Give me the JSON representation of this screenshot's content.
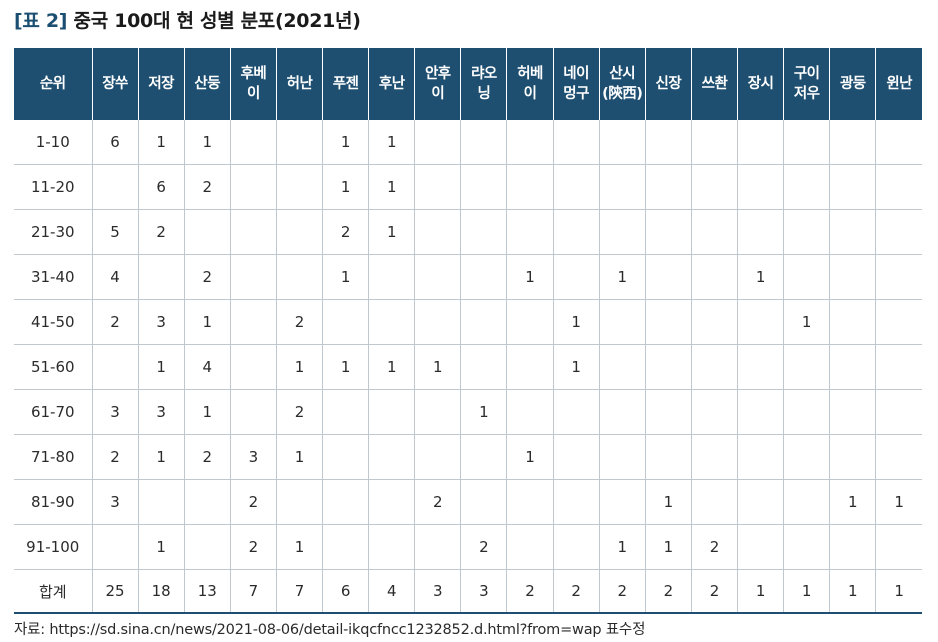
{
  "title": {
    "label": "[표 2]",
    "text": "중국 100대 현 성별 분포(2021년)"
  },
  "table": {
    "headers": [
      "순위",
      "장쑤",
      "저장",
      "산둥",
      "후베\n이",
      "허난",
      "푸젠",
      "후난",
      "안후\n이",
      "랴오\n닝",
      "허베\n이",
      "네이\n멍구",
      "산시\n(陝西)",
      "신장",
      "쓰촨",
      "장시",
      "구이\n저우",
      "광둥",
      "윈난"
    ],
    "rows": [
      [
        "1-10",
        "6",
        "1",
        "1",
        "",
        "",
        "1",
        "1",
        "",
        "",
        "",
        "",
        "",
        "",
        "",
        "",
        "",
        "",
        ""
      ],
      [
        "11-20",
        "",
        "6",
        "2",
        "",
        "",
        "1",
        "1",
        "",
        "",
        "",
        "",
        "",
        "",
        "",
        "",
        "",
        "",
        ""
      ],
      [
        "21-30",
        "5",
        "2",
        "",
        "",
        "",
        "2",
        "1",
        "",
        "",
        "",
        "",
        "",
        "",
        "",
        "",
        "",
        "",
        ""
      ],
      [
        "31-40",
        "4",
        "",
        "2",
        "",
        "",
        "1",
        "",
        "",
        "",
        "1",
        "",
        "1",
        "",
        "",
        "1",
        "",
        "",
        ""
      ],
      [
        "41-50",
        "2",
        "3",
        "1",
        "",
        "2",
        "",
        "",
        "",
        "",
        "",
        "1",
        "",
        "",
        "",
        "",
        "1",
        "",
        ""
      ],
      [
        "51-60",
        "",
        "1",
        "4",
        "",
        "1",
        "1",
        "1",
        "1",
        "",
        "",
        "1",
        "",
        "",
        "",
        "",
        "",
        "",
        ""
      ],
      [
        "61-70",
        "3",
        "3",
        "1",
        "",
        "2",
        "",
        "",
        "",
        "1",
        "",
        "",
        "",
        "",
        "",
        "",
        "",
        "",
        ""
      ],
      [
        "71-80",
        "2",
        "1",
        "2",
        "3",
        "1",
        "",
        "",
        "",
        "",
        "1",
        "",
        "",
        "",
        "",
        "",
        "",
        "",
        ""
      ],
      [
        "81-90",
        "3",
        "",
        "",
        "2",
        "",
        "",
        "",
        "2",
        "",
        "",
        "",
        "",
        "1",
        "",
        "",
        "",
        "1",
        "1"
      ],
      [
        "91-100",
        "",
        "1",
        "",
        "2",
        "1",
        "",
        "",
        "",
        "2",
        "",
        "",
        "1",
        "1",
        "2",
        "",
        "",
        "",
        ""
      ]
    ],
    "total": [
      "합계",
      "25",
      "18",
      "13",
      "7",
      "7",
      "6",
      "4",
      "3",
      "3",
      "2",
      "2",
      "2",
      "2",
      "2",
      "1",
      "1",
      "1",
      "1"
    ]
  },
  "source": "자료: https://sd.sina.cn/news/2021-08-06/detail-ikqcfncc1232852.d.html?from=wap 표수정",
  "colors": {
    "header_bg": "#1e4f70",
    "header_text": "#ffffff",
    "grid_line": "#bfc7cf"
  }
}
